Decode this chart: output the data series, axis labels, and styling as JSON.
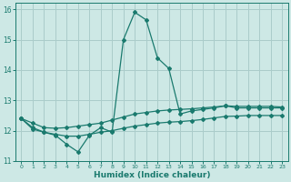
{
  "xlabel": "Humidex (Indice chaleur)",
  "ylabel": "",
  "xlim": [
    -0.5,
    23.5
  ],
  "ylim": [
    11,
    16.2
  ],
  "yticks": [
    11,
    12,
    13,
    14,
    15,
    16
  ],
  "xticks": [
    0,
    1,
    2,
    3,
    4,
    5,
    6,
    7,
    8,
    9,
    10,
    11,
    12,
    13,
    14,
    15,
    16,
    17,
    18,
    19,
    20,
    21,
    22,
    23
  ],
  "background_color": "#cde8e5",
  "grid_color": "#aaccca",
  "line_color": "#1a7a6e",
  "series": {
    "main": [
      12.4,
      12.1,
      11.95,
      11.85,
      11.55,
      11.3,
      11.85,
      12.1,
      11.95,
      15.0,
      15.9,
      15.65,
      14.4,
      14.05,
      12.55,
      12.65,
      12.7,
      12.75,
      12.82,
      12.75,
      12.75,
      12.75,
      12.75,
      12.75
    ],
    "upper": [
      12.4,
      12.25,
      12.1,
      12.08,
      12.1,
      12.15,
      12.2,
      12.25,
      12.35,
      12.45,
      12.55,
      12.6,
      12.65,
      12.68,
      12.7,
      12.72,
      12.75,
      12.78,
      12.82,
      12.8,
      12.8,
      12.8,
      12.8,
      12.78
    ],
    "lower": [
      12.4,
      12.05,
      11.95,
      11.88,
      11.82,
      11.82,
      11.88,
      11.95,
      12.0,
      12.08,
      12.15,
      12.2,
      12.25,
      12.28,
      12.3,
      12.33,
      12.37,
      12.42,
      12.47,
      12.48,
      12.5,
      12.5,
      12.5,
      12.5
    ]
  }
}
